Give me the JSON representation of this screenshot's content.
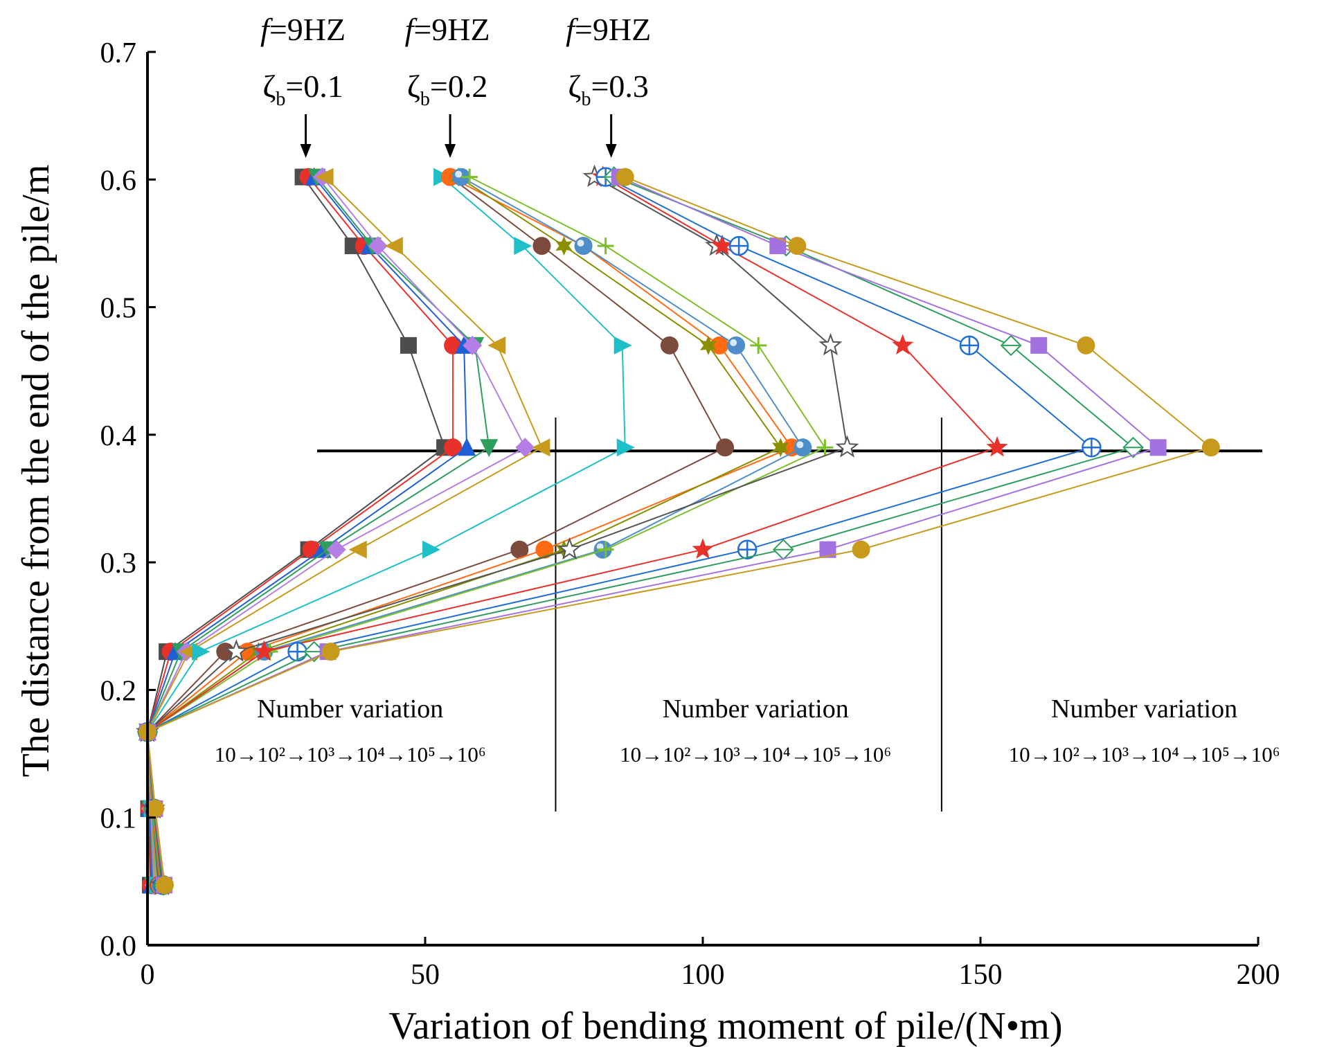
{
  "chart_data": {
    "type": "line",
    "xlabel": "Variation of  bending moment of pile/(N•m)",
    "ylabel": "The distance from the end of the pile/m",
    "xlim": [
      0,
      200
    ],
    "ylim": [
      0.0,
      0.7
    ],
    "x_ticks": [
      "0",
      "50",
      "100",
      "150",
      "200"
    ],
    "y_ticks": [
      "0.0",
      "0.1",
      "0.2",
      "0.3",
      "0.4",
      "0.5",
      "0.6",
      "0.7"
    ],
    "reference_line_y": 0.39,
    "annotations": [
      {
        "f_label": "f",
        "f_value": "=9HZ",
        "zeta_label": "ζ",
        "zeta_sub": "b",
        "zeta_value": "=0.1",
        "arrow_x": 28.5
      },
      {
        "f_label": "f",
        "f_value": "=9HZ",
        "zeta_label": "ζ",
        "zeta_sub": "b",
        "zeta_value": "=0.2",
        "arrow_x": 54.5
      },
      {
        "f_label": "f",
        "f_value": "=9HZ",
        "zeta_label": "ζ",
        "zeta_sub": "b",
        "zeta_value": "=0.3",
        "arrow_x": 83.5
      }
    ],
    "regions": [
      {
        "title": "Number variation",
        "sequence": "10→10²→10³→10⁴→10⁵→10⁶",
        "center_x": 36.5
      },
      {
        "title": "Number variation",
        "sequence": "10→10²→10³→10⁴→10⁵→10⁶",
        "center_x": 109.5
      },
      {
        "title": "Number variation",
        "sequence": "10→10²→10³→10⁴→10⁵→10⁶",
        "center_x": 179.5
      }
    ],
    "dividers_x": [
      73.5,
      143.0
    ],
    "y_levels": [
      0.047,
      0.107,
      0.167,
      0.23,
      0.31,
      0.39,
      0.47,
      0.548,
      0.602
    ],
    "series": [
      {
        "name": "ζb=0.1 N=10",
        "color": "#4d4d4d",
        "marker": "square",
        "x": [
          0.5,
          0.2,
          0,
          3.5,
          29,
          53.5,
          47,
          37,
          28
        ]
      },
      {
        "name": "ζb=0.1 N=10²",
        "color": "#e8312a",
        "marker": "circle",
        "x": [
          0.6,
          0.3,
          0,
          4.2,
          29.5,
          55,
          55,
          39,
          29
        ]
      },
      {
        "name": "ζb=0.1 N=10³",
        "color": "#1f5fd6",
        "marker": "triangle-up",
        "x": [
          0.8,
          0.4,
          0,
          5,
          31.5,
          57.5,
          57,
          40,
          30
        ]
      },
      {
        "name": "ζb=0.1 N=10⁴",
        "color": "#2e9e5e",
        "marker": "triangle-down",
        "x": [
          1.0,
          0.5,
          0,
          6,
          32.5,
          61.5,
          59,
          40.5,
          30.5
        ]
      },
      {
        "name": "ζb=0.1 N=10⁵",
        "color": "#b57ee6",
        "marker": "diamond",
        "x": [
          1.2,
          0.6,
          0,
          7,
          34,
          68,
          58.5,
          41.5,
          31.5
        ]
      },
      {
        "name": "ζb=0.1 N=10⁶",
        "color": "#c79a1c",
        "marker": "triangle-left",
        "x": [
          1.5,
          0.7,
          0,
          7.5,
          38,
          71,
          63,
          44.5,
          32
        ]
      },
      {
        "name": "ζb=0.2 N=10",
        "color": "#1fbfc9",
        "marker": "triangle-right",
        "x": [
          1.8,
          0.8,
          0,
          9.5,
          51,
          86,
          85.5,
          67.5,
          53
        ]
      },
      {
        "name": "ζb=0.2 N=10²",
        "color": "#7d4b3e",
        "marker": "circle",
        "x": [
          2.0,
          0.9,
          0,
          14,
          67,
          104,
          94,
          71,
          54.5
        ]
      },
      {
        "name": "ζb=0.2 N=10³",
        "color": "#ff6a13",
        "marker": "circle",
        "x": [
          2.2,
          0.9,
          0,
          18,
          71.5,
          116,
          103,
          78.5,
          54.5
        ]
      },
      {
        "name": "ζb=0.2 N=10⁴",
        "color": "#8a8f00",
        "marker": "star6",
        "x": [
          2.3,
          1.0,
          0,
          20,
          75,
          114,
          101,
          75,
          56
        ]
      },
      {
        "name": "ζb=0.2 N=10⁵",
        "color": "#4d8ec9",
        "marker": "sphere",
        "x": [
          2.4,
          1.0,
          0,
          21,
          82,
          118,
          106,
          78.5,
          56.5
        ]
      },
      {
        "name": "ζb=0.2 N=10⁶",
        "color": "#7cbf2a",
        "marker": "plus",
        "x": [
          2.5,
          1.0,
          0,
          22,
          82.5,
          122,
          110,
          82.5,
          58
        ]
      },
      {
        "name": "ζb=0.3 N=10",
        "color": "#555555",
        "marker": "star-open",
        "x": [
          2.6,
          1.1,
          0,
          16,
          76,
          126,
          123,
          102.5,
          80.5
        ]
      },
      {
        "name": "ζb=0.3 N=10²",
        "color": "#e8312a",
        "marker": "star",
        "x": [
          2.7,
          1.1,
          0,
          21,
          100,
          153,
          136,
          103.5,
          82
        ]
      },
      {
        "name": "ζb=0.3 N=10³",
        "color": "#1f6fd6",
        "marker": "circle-plus",
        "x": [
          2.8,
          1.2,
          0,
          27,
          108,
          170,
          148,
          106.5,
          82.5
        ]
      },
      {
        "name": "ζb=0.3 N=10⁴",
        "color": "#2e9e5e",
        "marker": "diamond-open",
        "x": [
          2.9,
          1.2,
          0,
          30,
          114.5,
          177.5,
          155.5,
          115,
          84
        ]
      },
      {
        "name": "ζb=0.3 N=10⁵",
        "color": "#a472e0",
        "marker": "square",
        "x": [
          3.0,
          1.3,
          0,
          32.5,
          122.5,
          182,
          160.5,
          113.5,
          85
        ]
      },
      {
        "name": "ζb=0.3 N=10⁶",
        "color": "#c79a1c",
        "marker": "circle",
        "x": [
          3.1,
          1.4,
          0,
          33,
          128.5,
          191.5,
          169,
          117,
          86
        ]
      }
    ]
  }
}
